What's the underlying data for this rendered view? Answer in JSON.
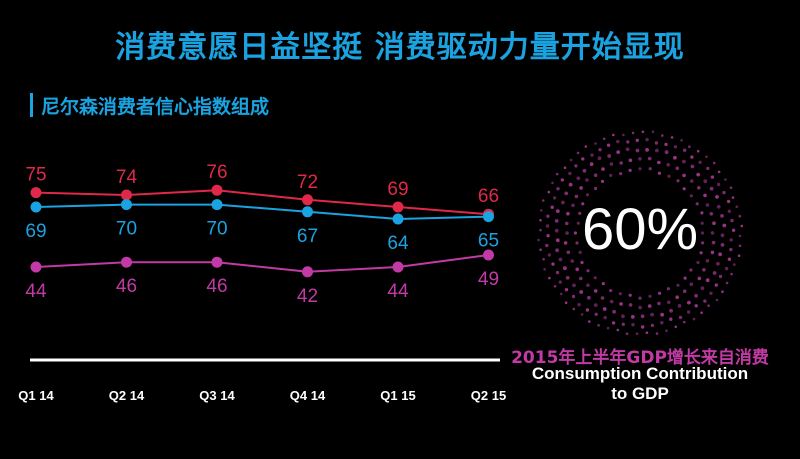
{
  "header": {
    "title": "消费意愿日益坚挺 消费驱动力量开始显现",
    "subtitle": "尼尔森消费者信心指数组成"
  },
  "colors": {
    "title": "#1aa3e0",
    "series_red": "#e0284a",
    "series_blue": "#1aa3e0",
    "series_magenta": "#c23aa5",
    "axis": "#ffffff",
    "ring": "#b13b9e"
  },
  "chart_data": {
    "type": "line",
    "x": [
      "Q1 14",
      "Q2 14",
      "Q3 14",
      "Q4 14",
      "Q1 15",
      "Q2 15"
    ],
    "series": [
      {
        "values": [
          75,
          74,
          76,
          72,
          69,
          66
        ],
        "color": "#e0284a",
        "label_position": "above"
      },
      {
        "values": [
          69,
          70,
          70,
          67,
          64,
          65
        ],
        "color": "#1aa3e0",
        "label_position": "below"
      },
      {
        "values": [
          44,
          46,
          46,
          42,
          44,
          49
        ],
        "color": "#c23aa5",
        "label_position": "below"
      }
    ],
    "data_labels": true,
    "grid": false,
    "legend": "none"
  },
  "stat": {
    "value": "60%",
    "caption_cn": "2015年上半年GDP增长来自消费",
    "caption_en_line1": "Consumption Contribution",
    "caption_en_line2": "to GDP"
  }
}
